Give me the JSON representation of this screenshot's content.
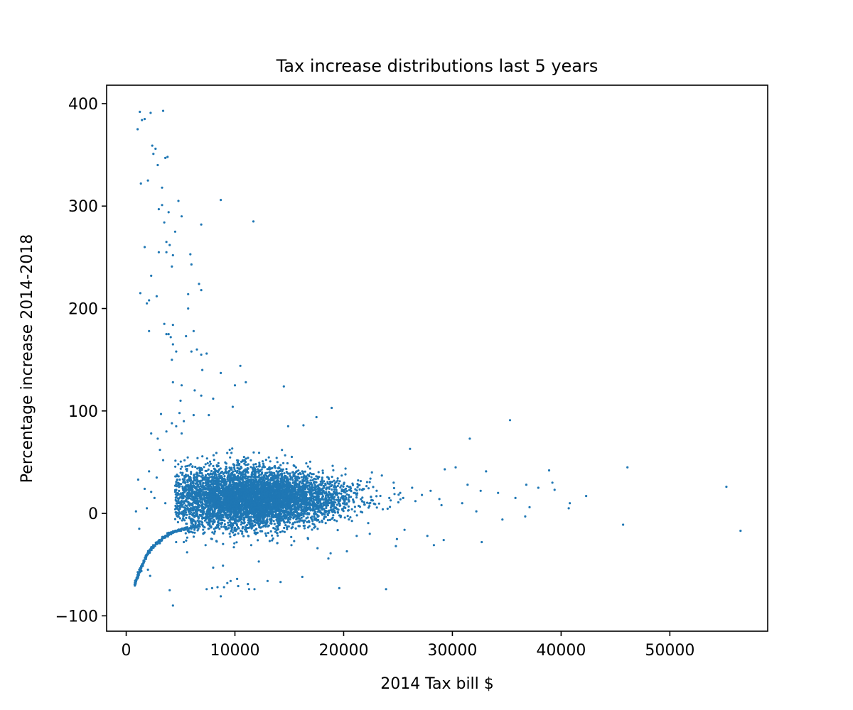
{
  "chart_data": {
    "type": "scatter",
    "title": "Tax increase distributions last 5 years",
    "xlabel": "2014 Tax bill $",
    "ylabel": "Percentage increase 2014-2018",
    "xlim": [
      -1800,
      59000
    ],
    "ylim": [
      -115,
      418
    ],
    "xticks": [
      0,
      10000,
      20000,
      30000,
      40000,
      50000
    ],
    "xtick_labels": [
      "0",
      "10000",
      "20000",
      "30000",
      "40000",
      "50000"
    ],
    "yticks": [
      -100,
      0,
      100,
      200,
      300,
      400
    ],
    "ytick_labels": [
      "−100",
      "0",
      "100",
      "200",
      "300",
      "400"
    ],
    "grid": false,
    "legend": "none",
    "color": "#1f77b4",
    "series": [
      {
        "points": [
          [
            1050,
            375
          ],
          [
            1250,
            392
          ],
          [
            1450,
            384
          ],
          [
            1700,
            385
          ],
          [
            2250,
            391
          ],
          [
            3400,
            393
          ],
          [
            2400,
            359
          ],
          [
            2500,
            351
          ],
          [
            2700,
            356
          ],
          [
            3600,
            347
          ],
          [
            3800,
            348
          ],
          [
            2900,
            340
          ],
          [
            1350,
            322
          ],
          [
            2000,
            325
          ],
          [
            3300,
            318
          ],
          [
            3000,
            297
          ],
          [
            3300,
            301
          ],
          [
            3900,
            294
          ],
          [
            4800,
            305
          ],
          [
            5100,
            290
          ],
          [
            8700,
            306
          ],
          [
            11700,
            285
          ],
          [
            6900,
            282
          ],
          [
            3500,
            284
          ],
          [
            4500,
            275
          ],
          [
            3700,
            265
          ],
          [
            4000,
            262
          ],
          [
            3700,
            255
          ],
          [
            3000,
            255
          ],
          [
            1700,
            260
          ],
          [
            4300,
            252
          ],
          [
            5900,
            253
          ],
          [
            6000,
            243
          ],
          [
            4200,
            241
          ],
          [
            2300,
            232
          ],
          [
            5700,
            214
          ],
          [
            6700,
            224
          ],
          [
            6900,
            218
          ],
          [
            1300,
            215
          ],
          [
            2800,
            212
          ],
          [
            2100,
            208
          ],
          [
            1900,
            205
          ],
          [
            5700,
            200
          ],
          [
            3500,
            185
          ],
          [
            4300,
            184
          ],
          [
            3700,
            175
          ],
          [
            3900,
            175
          ],
          [
            2100,
            178
          ],
          [
            4100,
            172
          ],
          [
            5500,
            173
          ],
          [
            6200,
            178
          ],
          [
            4300,
            165
          ],
          [
            4600,
            158
          ],
          [
            4200,
            150
          ],
          [
            6000,
            158
          ],
          [
            6500,
            160
          ],
          [
            6900,
            155
          ],
          [
            7400,
            156
          ],
          [
            4300,
            128
          ],
          [
            5100,
            125
          ],
          [
            7000,
            140
          ],
          [
            8700,
            137
          ],
          [
            10500,
            144
          ],
          [
            11000,
            128
          ],
          [
            10000,
            125
          ],
          [
            14500,
            124
          ],
          [
            6300,
            120
          ],
          [
            6900,
            115
          ],
          [
            8000,
            112
          ],
          [
            5000,
            110
          ],
          [
            4900,
            98
          ],
          [
            6200,
            96
          ],
          [
            7600,
            96
          ],
          [
            9800,
            104
          ],
          [
            3200,
            97
          ],
          [
            5300,
            90
          ],
          [
            18900,
            103
          ],
          [
            17500,
            94
          ],
          [
            16300,
            86
          ],
          [
            14900,
            85
          ],
          [
            35300,
            91
          ],
          [
            31600,
            73
          ],
          [
            26100,
            63
          ],
          [
            46100,
            45
          ],
          [
            55200,
            26
          ],
          [
            38900,
            42
          ],
          [
            42300,
            17
          ],
          [
            40800,
            10
          ],
          [
            40700,
            5
          ],
          [
            36800,
            28
          ],
          [
            33100,
            41
          ],
          [
            30300,
            45
          ],
          [
            29300,
            43
          ],
          [
            28000,
            22
          ],
          [
            29000,
            8
          ],
          [
            31400,
            28
          ],
          [
            32600,
            22
          ],
          [
            34200,
            20
          ],
          [
            35800,
            15
          ],
          [
            37900,
            25
          ],
          [
            39200,
            30
          ],
          [
            39400,
            23
          ],
          [
            30900,
            10
          ],
          [
            32200,
            2
          ],
          [
            34600,
            -6
          ],
          [
            36700,
            -3
          ],
          [
            37100,
            6
          ],
          [
            26600,
            12
          ],
          [
            28800,
            14
          ],
          [
            22600,
            40
          ],
          [
            24600,
            30
          ],
          [
            45700,
            -11
          ],
          [
            56500,
            -17
          ],
          [
            32700,
            -28
          ],
          [
            28300,
            -31
          ],
          [
            29200,
            -26
          ],
          [
            27700,
            -22
          ],
          [
            25600,
            -16
          ],
          [
            24900,
            -25
          ],
          [
            23900,
            -74
          ],
          [
            19600,
            -73
          ],
          [
            18600,
            -44
          ],
          [
            17600,
            -34
          ],
          [
            18800,
            -39
          ],
          [
            16200,
            -62
          ],
          [
            14200,
            -67
          ],
          [
            13000,
            -66
          ],
          [
            11800,
            -74
          ],
          [
            11300,
            -74
          ],
          [
            11200,
            -69
          ],
          [
            10300,
            -71
          ],
          [
            9600,
            -66
          ],
          [
            9300,
            -68
          ],
          [
            9000,
            -72
          ],
          [
            8700,
            -81
          ],
          [
            8400,
            -72
          ],
          [
            7900,
            -73
          ],
          [
            7400,
            -74
          ],
          [
            8000,
            -53
          ],
          [
            8900,
            -51
          ],
          [
            12200,
            -47
          ],
          [
            10200,
            -64
          ],
          [
            4300,
            -90
          ],
          [
            4000,
            -75
          ],
          [
            2200,
            -61
          ],
          [
            2000,
            -55
          ],
          [
            1200,
            -55
          ],
          [
            1100,
            -62
          ],
          [
            5300,
            -28
          ],
          [
            5600,
            -38
          ],
          [
            7300,
            -31
          ],
          [
            8300,
            -27
          ],
          [
            9900,
            -33
          ],
          [
            11500,
            -31
          ],
          [
            13200,
            -27
          ],
          [
            15200,
            -31
          ],
          [
            16700,
            -24
          ],
          [
            20300,
            -37
          ],
          [
            21200,
            -22
          ],
          [
            22400,
            -20
          ],
          [
            24800,
            -32
          ],
          [
            21700,
            1
          ],
          [
            22900,
            9
          ],
          [
            23600,
            4
          ],
          [
            24200,
            15
          ],
          [
            25200,
            20
          ],
          [
            26300,
            25
          ],
          [
            27200,
            18
          ],
          [
            1100,
            33
          ],
          [
            1700,
            24
          ],
          [
            1900,
            5
          ],
          [
            2100,
            41
          ],
          [
            2300,
            21
          ],
          [
            2600,
            15
          ],
          [
            2800,
            35
          ],
          [
            3100,
            62
          ],
          [
            3400,
            52
          ],
          [
            3600,
            10
          ],
          [
            1200,
            -15
          ],
          [
            900,
            2
          ],
          [
            2300,
            78
          ],
          [
            2900,
            73
          ],
          [
            3700,
            80
          ],
          [
            4200,
            88
          ],
          [
            4600,
            85
          ],
          [
            5100,
            78
          ]
        ],
        "cloud": {
          "x_mean": 11500,
          "x_sd": 4300,
          "x_range": [
            4500,
            25500
          ],
          "y_mean": 15,
          "y_sd": 15,
          "y_range": [
            -30,
            65
          ],
          "count": 5500
        },
        "curve": {
          "description": "dense lower-left arc",
          "x": [
            800,
            1000,
            1300,
            1600,
            2000,
            2400,
            2800,
            3300,
            3800,
            4400,
            5000,
            5800,
            6800
          ],
          "y": [
            -70,
            -63,
            -55,
            -47,
            -38,
            -33,
            -29,
            -25,
            -21,
            -18,
            -16,
            -14,
            -12
          ]
        }
      }
    ]
  }
}
